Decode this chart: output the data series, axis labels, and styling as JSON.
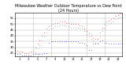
{
  "title": "Milwaukee Weather Outdoor Temperature vs Dew Point (24 Hours)",
  "title_fontsize": 3.5,
  "figsize": [
    1.6,
    0.87
  ],
  "dpi": 100,
  "bg_color": "#ffffff",
  "grid_color": "#aaaaaa",
  "ylim": [
    22,
    60
  ],
  "xlim": [
    0,
    24
  ],
  "yticks": [
    25,
    30,
    35,
    40,
    45,
    50,
    55
  ],
  "ytick_fontsize": 2.8,
  "xtick_fontsize": 2.5,
  "xticks": [
    1,
    3,
    5,
    7,
    9,
    11,
    13,
    15,
    17,
    19,
    21,
    23
  ],
  "vlines": [
    4,
    8,
    12,
    16,
    20
  ],
  "temp_color": "#ff0000",
  "dew_color": "#0000ff",
  "feel_color": "#000000",
  "temp_x": [
    0,
    0.5,
    1,
    1.5,
    2,
    2.5,
    3,
    3.5,
    4,
    4.5,
    5,
    5.5,
    6,
    6.5,
    7,
    7.5,
    8,
    8.5,
    9,
    9.5,
    10,
    10.5,
    11,
    11.5,
    12,
    12.5,
    13,
    13.5,
    14,
    14.5,
    15,
    15.5,
    16,
    16.5,
    17,
    17.5,
    18,
    18.5,
    19,
    19.5,
    20,
    20.5,
    21,
    21.5,
    22,
    22.5,
    23,
    23.5,
    24
  ],
  "temp_y": [
    28,
    27,
    26,
    26,
    25,
    25,
    25,
    26,
    27,
    30,
    33,
    36,
    40,
    43,
    46,
    48,
    49,
    50,
    51,
    51,
    52,
    52,
    52,
    51,
    51,
    50,
    50,
    50,
    50,
    49,
    48,
    46,
    44,
    42,
    40,
    38,
    37,
    37,
    43,
    47,
    50,
    52,
    53,
    54,
    55,
    57,
    58,
    59,
    59
  ],
  "dew_x": [
    0,
    0.5,
    1,
    1.5,
    2,
    2.5,
    3,
    3.5,
    4,
    4.5,
    5,
    5.5,
    6,
    6.5,
    7,
    7.5,
    8,
    8.5,
    9,
    9.5,
    10,
    10.5,
    11,
    11.5,
    12,
    12.5,
    13,
    13.5,
    14,
    14.5,
    15,
    15.5,
    16,
    16.5,
    17,
    17.5,
    18,
    18.5,
    19,
    19.5,
    20,
    20.5,
    21,
    21.5,
    22,
    22.5,
    23,
    23.5,
    24
  ],
  "dew_y": [
    25,
    24,
    24,
    23,
    23,
    23,
    23,
    23,
    24,
    24,
    24,
    24,
    24,
    25,
    25,
    34,
    35,
    35,
    35,
    35,
    35,
    35,
    35,
    35,
    35,
    35,
    35,
    35,
    35,
    34,
    34,
    33,
    32,
    28,
    28,
    33,
    33,
    33,
    35,
    36,
    34,
    34,
    33,
    33,
    33,
    33,
    33,
    33,
    33
  ],
  "feel_x": [
    0,
    0.5,
    1,
    1.5,
    2,
    2.5,
    3,
    3.5,
    4,
    4.5,
    5,
    5.5,
    6,
    6.5,
    7,
    7.5,
    8,
    8.5,
    9,
    9.5,
    10,
    10.5,
    11,
    11.5,
    12,
    12.5,
    13,
    13.5,
    14,
    14.5,
    15,
    15.5,
    16,
    16.5,
    17,
    17.5,
    18,
    18.5,
    19,
    19.5,
    20,
    20.5,
    21,
    21.5,
    22,
    22.5,
    23,
    23.5,
    24
  ],
  "feel_y": [
    22,
    21,
    21,
    20,
    20,
    20,
    20,
    21,
    22,
    25,
    29,
    32,
    36,
    39,
    43,
    45,
    46,
    47,
    48,
    48,
    49,
    49,
    49,
    48,
    48,
    47,
    47,
    47,
    47,
    47,
    46,
    44,
    41,
    39,
    37,
    35,
    34,
    34,
    40,
    44,
    47,
    49,
    50,
    51,
    52,
    54,
    55,
    56,
    56
  ]
}
